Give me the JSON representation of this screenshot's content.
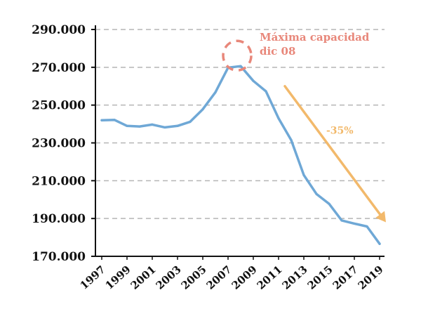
{
  "chart_data": {
    "type": "line",
    "title": "",
    "xlabel": "",
    "ylabel": "",
    "x": [
      1997,
      1998,
      1999,
      2000,
      2001,
      2002,
      2003,
      2004,
      2005,
      2006,
      2007,
      2008,
      2009,
      2010,
      2011,
      2012,
      2013,
      2014,
      2015,
      2016,
      2017,
      2018,
      2019
    ],
    "x_tick_labels": [
      "1997",
      "1999",
      "2001",
      "2003",
      "2005",
      "2007",
      "2009",
      "2011",
      "2013",
      "2015",
      "2017",
      "2019"
    ],
    "y_tick_labels": [
      "290.000",
      "270.000",
      "250.000",
      "230.000",
      "210.000",
      "190.000",
      "170.000"
    ],
    "y_ticks": [
      290000,
      270000,
      250000,
      230000,
      210000,
      190000,
      170000
    ],
    "ylim": [
      170000,
      290000
    ],
    "xlim": [
      1997,
      2019
    ],
    "grid": "horizontal-dashed",
    "series": [
      {
        "values": [
          242000,
          242200,
          239000,
          238700,
          239700,
          238200,
          239000,
          241200,
          247800,
          256800,
          269800,
          270600,
          262800,
          257300,
          243000,
          231500,
          213000,
          203000,
          197800,
          189000,
          187300,
          185800,
          176600
        ],
        "color": "#6fa8d6"
      }
    ],
    "annotations": [
      {
        "text_1": "Máxima capacidad",
        "text_2": "dic 08",
        "color": "#e8877a",
        "marker": "dashed-circle",
        "x": 2008,
        "y": 270600
      },
      {
        "text": "-35%",
        "color": "#f2b96b",
        "marker": "arrow",
        "from": {
          "x": 2011.5,
          "y": 260000
        },
        "to": {
          "x": 2019.5,
          "y": 188000
        }
      }
    ],
    "colors": {
      "line": "#6fa8d6",
      "grid": "#b5b5b5",
      "axis": "#111111"
    }
  }
}
